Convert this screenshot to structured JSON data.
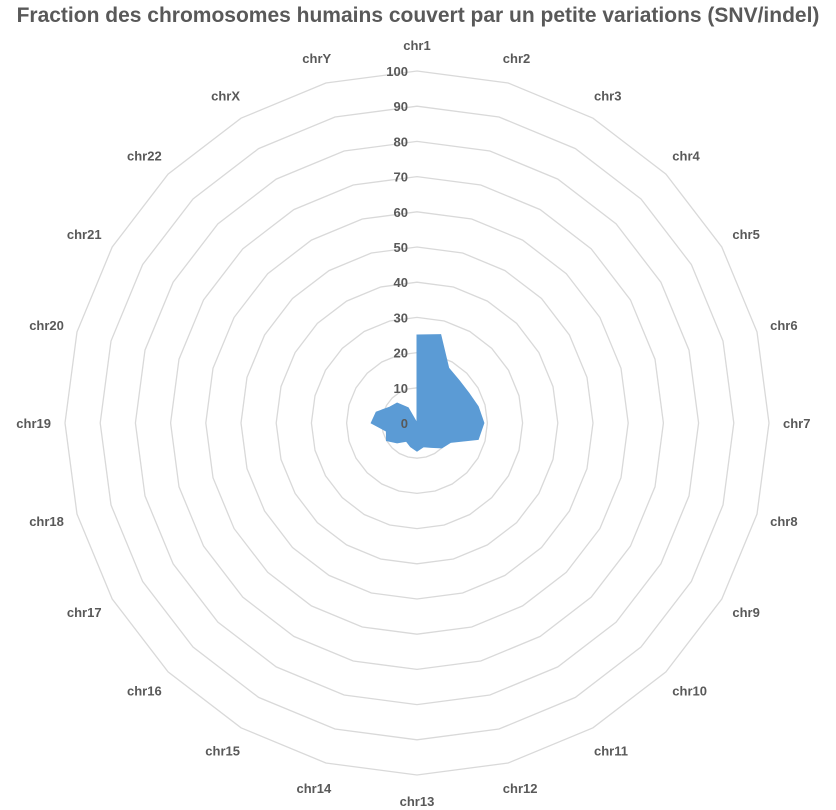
{
  "chart_data": {
    "type": "radar",
    "title": "Fraction des chromosomes humains couvert par un petite variations (SNV/indel)",
    "categories": [
      "chr1",
      "chr2",
      "chr3",
      "chr4",
      "chr5",
      "chr6",
      "chr7",
      "chr8",
      "chr9",
      "chr10",
      "chr11",
      "chr12",
      "chr13",
      "chr14",
      "chr15",
      "chr16",
      "chr17",
      "chr18",
      "chr19",
      "chr20",
      "chr21",
      "chr22",
      "chrX",
      "chrY"
    ],
    "rlim": [
      0,
      100
    ],
    "ticks": [
      "0",
      "10",
      "20",
      "30",
      "40",
      "50",
      "60",
      "70",
      "80",
      "90",
      "100"
    ],
    "series": [
      {
        "color": "#5b9bd5",
        "values": [
          25,
          26,
          18,
          17,
          17,
          18,
          19,
          18,
          11,
          10,
          8,
          7,
          8,
          7,
          6,
          8,
          10,
          9,
          13,
          12,
          9,
          8,
          5,
          0
        ]
      }
    ],
    "grid": true
  }
}
